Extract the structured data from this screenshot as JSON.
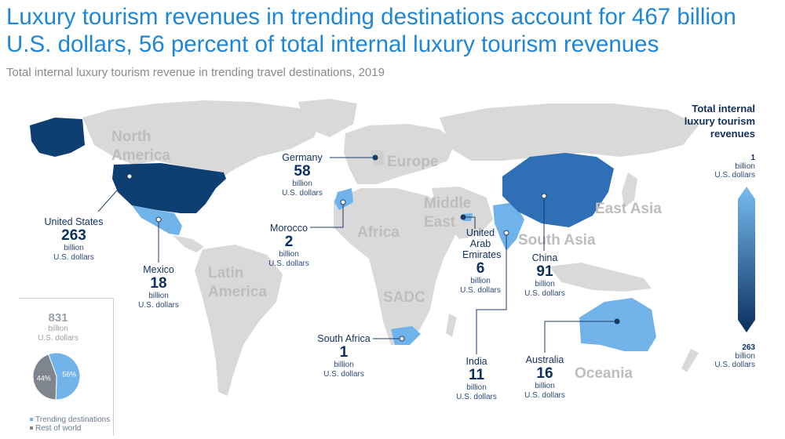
{
  "title": "Luxury tourism revenues in trending destinations account for 467 billion U.S. dollars, 56 percent of total internal luxury tourism revenues",
  "subtitle": "Total internal luxury tourism revenue in trending travel destinations, 2019",
  "regions": [
    "North America",
    "Europe",
    "Middle East",
    "Africa",
    "Latin America",
    "SADC",
    "East Asia",
    "South Asia",
    "Oceania"
  ],
  "unit_line1": "billion",
  "unit_line2": "U.S. dollars",
  "countries": [
    {
      "name": "United States",
      "value": "263",
      "color": "#0d3f72"
    },
    {
      "name": "Mexico",
      "value": "18",
      "color": "#72b4ea"
    },
    {
      "name": "Germany",
      "value": "58",
      "color": "#cfcfcf"
    },
    {
      "name": "Morocco",
      "value": "2",
      "color": "#6fb3ea"
    },
    {
      "name": "United Arab Emirates",
      "value": "6",
      "color": "#6fb3ea"
    },
    {
      "name": "South Africa",
      "value": "1",
      "color": "#6fb3ea"
    },
    {
      "name": "India",
      "value": "11",
      "color": "#6fb3ea"
    },
    {
      "name": "China",
      "value": "91",
      "color": "#2f6fb5"
    },
    {
      "name": "Australia",
      "value": "16",
      "color": "#72b4ea"
    }
  ],
  "legend": {
    "title": "Total internal luxury tourism revenues",
    "min_value": "1",
    "max_value": "263",
    "min_color": "#78bcf0",
    "max_color": "#0b2f5e"
  },
  "total": {
    "value": "831",
    "unit1": "billion",
    "unit2": "U.S. dollars",
    "pie": [
      {
        "label": "Trending destinations",
        "percent": 56,
        "color": "#72b4ea"
      },
      {
        "label": "Rest of world",
        "percent": 44,
        "color": "#7e858c"
      }
    ]
  }
}
